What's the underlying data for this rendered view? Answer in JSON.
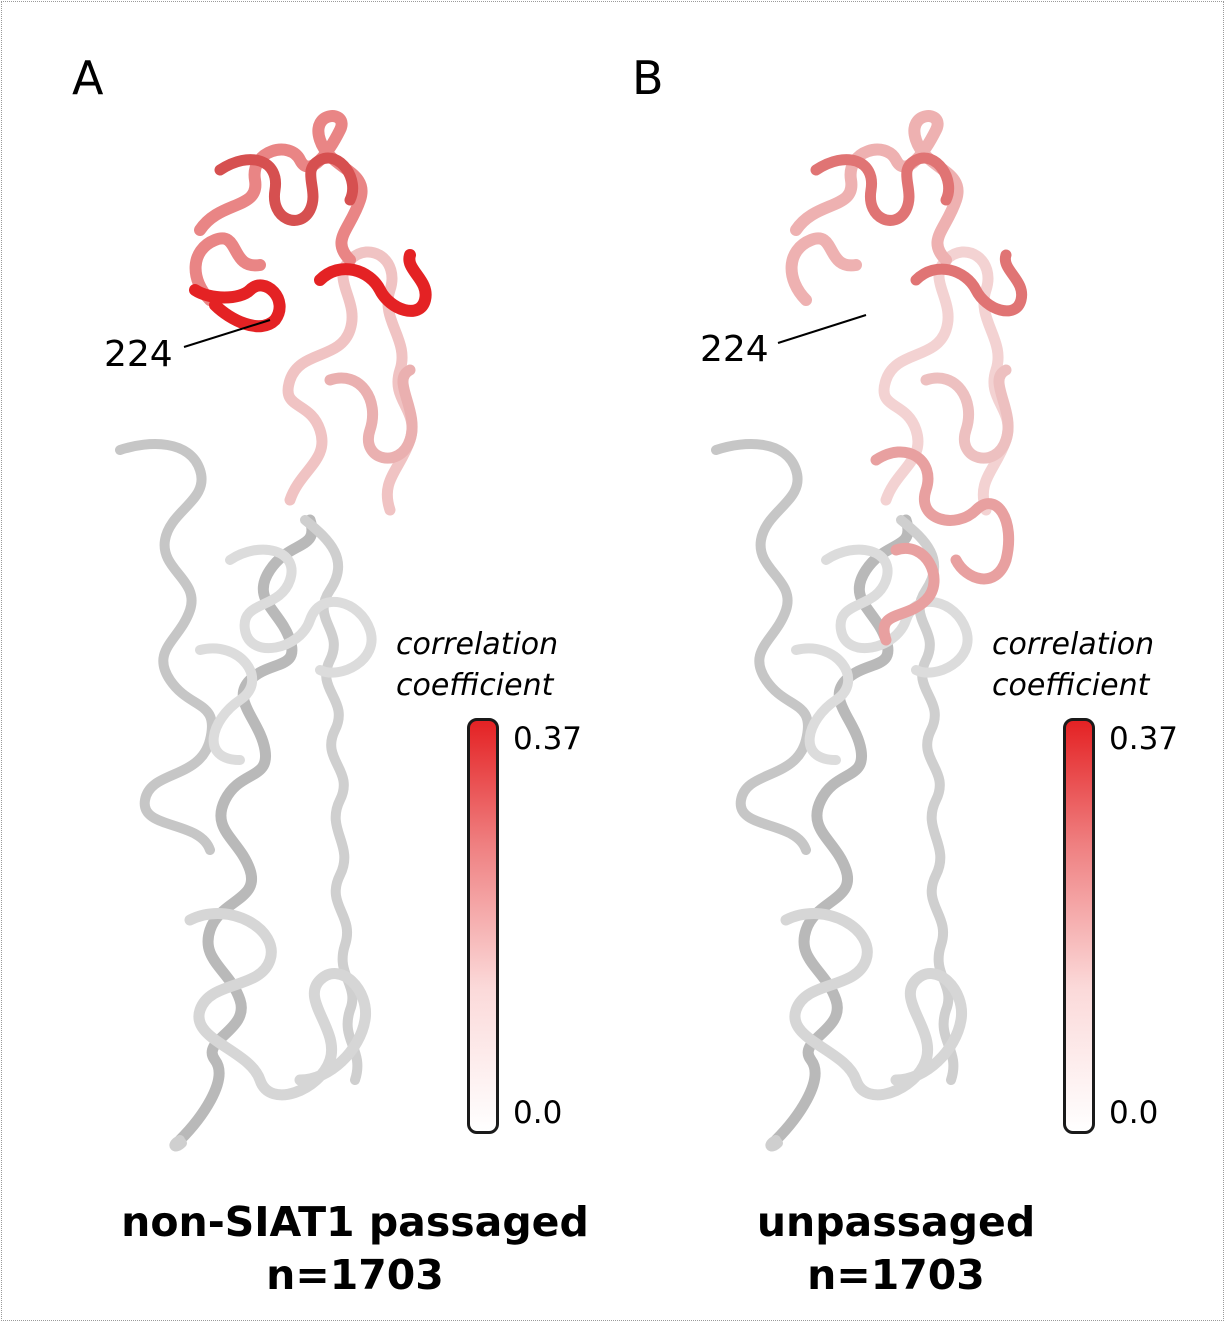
{
  "panels": [
    {
      "letter": "A",
      "residue_label": "224",
      "colorbar": {
        "title_line1": "correlation",
        "title_line2": "coefficient",
        "max_label": "0.37",
        "min_label": "0.0",
        "max_color": "#e42224",
        "min_color": "#ffffff"
      },
      "caption_line1": "non-SIAT1 passaged",
      "caption_line2": "n=1703"
    },
    {
      "letter": "B",
      "residue_label": "224",
      "colorbar": {
        "title_line1": "correlation",
        "title_line2": "coefficient",
        "max_label": "0.37",
        "min_label": "0.0",
        "max_color": "#e42224",
        "min_color": "#ffffff"
      },
      "caption_line1": "unpassaged",
      "caption_line2": "n=1703"
    }
  ],
  "colors": {
    "backbone_gray": "#d4d4d4",
    "backbone_shadow": "#8c8c8c",
    "high_correlation": "#e42224",
    "mid_correlation": "#e98585"
  }
}
